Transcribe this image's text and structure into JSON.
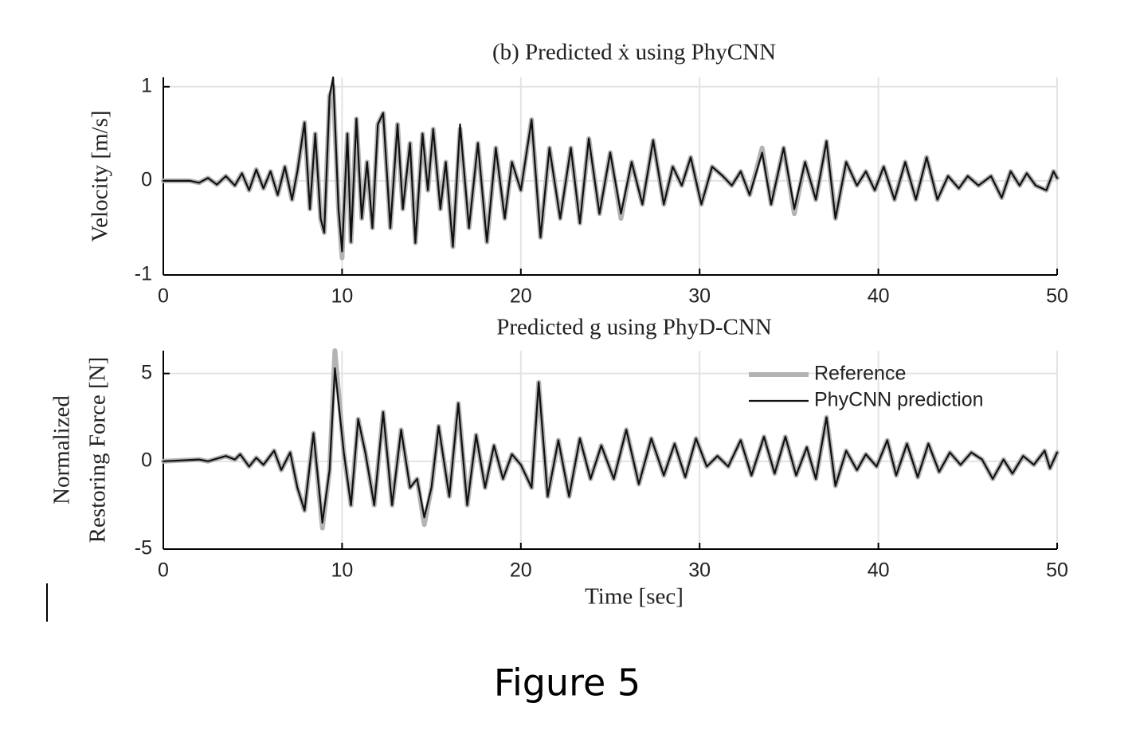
{
  "chart_data": [
    {
      "type": "line",
      "title": "(b) Predicted ẋ using PhyCNN",
      "ylabel": [
        "Velocity [m/s]"
      ],
      "xlim": [
        0,
        50
      ],
      "ylim": [
        -1,
        1.1
      ],
      "xticks": [
        0,
        10,
        20,
        30,
        40,
        50
      ],
      "yticks": [
        -1,
        0,
        1
      ],
      "grid": true,
      "x": [
        0,
        1.5,
        2,
        2.5,
        3,
        3.5,
        4,
        4.4,
        4.8,
        5.2,
        5.6,
        6,
        6.4,
        6.8,
        7.2,
        7.5,
        7.9,
        8.2,
        8.5,
        8.8,
        9,
        9.3,
        9.5,
        9.8,
        10,
        10.3,
        10.5,
        10.8,
        11.1,
        11.4,
        11.7,
        12,
        12.3,
        12.7,
        13.1,
        13.4,
        13.8,
        14.1,
        14.5,
        14.8,
        15.1,
        15.5,
        15.8,
        16.2,
        16.6,
        17.1,
        17.6,
        18.1,
        18.6,
        19.1,
        19.5,
        20,
        20.6,
        21.1,
        21.6,
        22.2,
        22.8,
        23.3,
        23.8,
        24.4,
        25,
        25.6,
        26.2,
        26.8,
        27.4,
        28,
        28.5,
        29,
        29.5,
        30.1,
        30.7,
        31.3,
        31.8,
        32.3,
        32.8,
        33.5,
        34,
        34.7,
        35.3,
        35.9,
        36.5,
        37.1,
        37.6,
        38.2,
        38.8,
        39.3,
        39.8,
        40.3,
        40.9,
        41.5,
        42.1,
        42.7,
        43.3,
        43.9,
        44.5,
        45,
        45.6,
        46.3,
        46.9,
        47.4,
        47.9,
        48.3,
        48.8,
        49.4,
        49.8,
        50
      ],
      "series": [
        {
          "color": "#b3b3b3",
          "width": 6,
          "values": [
            0,
            0,
            -0.02,
            0.03,
            -0.04,
            0.05,
            -0.05,
            0.08,
            -0.1,
            0.12,
            -0.08,
            0.1,
            -0.15,
            0.15,
            -0.2,
            0.1,
            0.62,
            -0.3,
            0.5,
            -0.4,
            -0.55,
            0.9,
            1.0,
            -0.3,
            -0.82,
            0.5,
            -0.65,
            0.66,
            -0.4,
            0.2,
            -0.5,
            0.6,
            0.72,
            -0.5,
            0.6,
            -0.3,
            0.4,
            -0.66,
            0.5,
            -0.1,
            0.55,
            -0.3,
            0.2,
            -0.7,
            0.55,
            -0.5,
            0.4,
            -0.65,
            0.35,
            -0.4,
            0.2,
            -0.1,
            0.65,
            -0.6,
            0.35,
            -0.4,
            0.35,
            -0.45,
            0.45,
            -0.35,
            0.3,
            -0.4,
            0.2,
            -0.25,
            0.43,
            -0.25,
            0.15,
            -0.05,
            0.25,
            -0.25,
            0.15,
            0.05,
            -0.05,
            0.1,
            -0.15,
            0.35,
            -0.25,
            0.35,
            -0.35,
            0.2,
            -0.2,
            0.42,
            -0.4,
            0.2,
            -0.05,
            0.1,
            -0.1,
            0.15,
            -0.2,
            0.2,
            -0.2,
            0.25,
            -0.2,
            0.05,
            -0.08,
            0.05,
            -0.05,
            0.05,
            -0.18,
            0.1,
            -0.05,
            0.08,
            -0.05,
            -0.1,
            0.1,
            0.03
          ]
        },
        {
          "color": "#111111",
          "width": 2.2,
          "values": [
            0,
            0,
            -0.02,
            0.03,
            -0.04,
            0.05,
            -0.05,
            0.08,
            -0.1,
            0.12,
            -0.08,
            0.1,
            -0.15,
            0.15,
            -0.2,
            0.1,
            0.62,
            -0.3,
            0.5,
            -0.4,
            -0.55,
            0.9,
            1.1,
            -0.3,
            -0.75,
            0.5,
            -0.65,
            0.66,
            -0.4,
            0.2,
            -0.5,
            0.6,
            0.72,
            -0.5,
            0.6,
            -0.3,
            0.4,
            -0.66,
            0.5,
            -0.1,
            0.55,
            -0.3,
            0.2,
            -0.7,
            0.6,
            -0.5,
            0.4,
            -0.65,
            0.35,
            -0.4,
            0.2,
            -0.1,
            0.65,
            -0.6,
            0.35,
            -0.4,
            0.35,
            -0.45,
            0.45,
            -0.35,
            0.3,
            -0.35,
            0.2,
            -0.25,
            0.43,
            -0.25,
            0.15,
            -0.05,
            0.25,
            -0.25,
            0.15,
            0.05,
            -0.05,
            0.1,
            -0.15,
            0.3,
            -0.25,
            0.35,
            -0.3,
            0.2,
            -0.2,
            0.42,
            -0.4,
            0.2,
            -0.05,
            0.1,
            -0.1,
            0.15,
            -0.2,
            0.2,
            -0.2,
            0.25,
            -0.2,
            0.05,
            -0.08,
            0.05,
            -0.05,
            0.05,
            -0.18,
            0.1,
            -0.05,
            0.08,
            -0.05,
            -0.1,
            0.1,
            0.03
          ]
        }
      ]
    },
    {
      "type": "line",
      "title": "Predicted g using PhyD-CNN",
      "ylabel": [
        "Normalized",
        "Restoring Force [N]"
      ],
      "xlabel": "Time [sec]",
      "xlim": [
        0,
        50
      ],
      "ylim": [
        -5,
        6.3
      ],
      "xticks": [
        0,
        10,
        20,
        30,
        40,
        50
      ],
      "yticks": [
        -5,
        0,
        5
      ],
      "grid": true,
      "legend": "upper right",
      "x": [
        0,
        2,
        2.5,
        3.5,
        4,
        4.3,
        4.8,
        5.2,
        5.6,
        6.2,
        6.6,
        7.1,
        7.5,
        7.9,
        8.4,
        8.9,
        9.3,
        9.6,
        10.1,
        10.5,
        10.9,
        11.3,
        11.8,
        12.3,
        12.8,
        13.3,
        13.8,
        14.2,
        14.6,
        15,
        15.4,
        16,
        16.5,
        17,
        17.5,
        18,
        18.5,
        19,
        19.5,
        20,
        20.6,
        21,
        21.5,
        22.1,
        22.7,
        23.3,
        23.9,
        24.5,
        25.2,
        25.9,
        26.6,
        27.3,
        28,
        28.6,
        29.2,
        29.8,
        30.4,
        31,
        31.6,
        32.3,
        32.9,
        33.6,
        34.2,
        34.8,
        35.4,
        36,
        36.5,
        37.1,
        37.6,
        38.2,
        38.8,
        39.3,
        39.9,
        40.5,
        41,
        41.6,
        42.2,
        42.8,
        43.4,
        44,
        44.6,
        45.2,
        45.8,
        46.4,
        47,
        47.5,
        48.1,
        48.7,
        49.3,
        49.6,
        50
      ],
      "series": [
        {
          "name": "Reference",
          "color": "#b3b3b3",
          "width": 6,
          "values": [
            0,
            0.1,
            0,
            0.3,
            0.1,
            0.4,
            -0.3,
            0.2,
            -0.2,
            0.6,
            -0.5,
            0.5,
            -1.5,
            -2.8,
            1.6,
            -3.8,
            -0.5,
            6.3,
            0.5,
            -2.5,
            2.4,
            0.5,
            -2.5,
            2.8,
            -2.5,
            1.8,
            -1.5,
            -1,
            -3.6,
            -1.5,
            2,
            -2,
            3.3,
            -2.5,
            1.5,
            -1.5,
            0.9,
            -1,
            0.4,
            -0.2,
            -1.5,
            4.5,
            -2,
            1.2,
            -2,
            1.3,
            -1,
            0.9,
            -1,
            1.8,
            -1.3,
            1.3,
            -0.8,
            1,
            -0.9,
            1.3,
            -0.3,
            0.3,
            -0.3,
            1.2,
            -0.8,
            1.4,
            -0.7,
            1.4,
            -0.8,
            0.8,
            -1,
            2.5,
            -1.4,
            0.6,
            -0.5,
            0.4,
            -0.3,
            1.2,
            -0.8,
            1,
            -0.9,
            1,
            -0.6,
            0.5,
            -0.2,
            0.5,
            0.1,
            -1,
            0.1,
            -0.7,
            0.3,
            -0.2,
            0.6,
            -0.4,
            0.5
          ]
        },
        {
          "name": "PhyCNN prediction",
          "color": "#111111",
          "width": 2.2,
          "values": [
            0,
            0.1,
            0,
            0.3,
            0.1,
            0.4,
            -0.3,
            0.2,
            -0.2,
            0.6,
            -0.5,
            0.5,
            -1.5,
            -2.8,
            1.6,
            -3.5,
            -0.5,
            5.3,
            0.5,
            -2.5,
            2.4,
            0.5,
            -2.5,
            2.8,
            -2.5,
            1.8,
            -1.5,
            -1,
            -3.2,
            -1.5,
            2,
            -2,
            3.3,
            -2.5,
            1.5,
            -1.5,
            0.9,
            -1,
            0.4,
            -0.2,
            -1.5,
            4.5,
            -2,
            1.2,
            -2,
            1.3,
            -1,
            0.9,
            -1,
            1.8,
            -1.3,
            1.3,
            -0.8,
            1,
            -0.9,
            1.3,
            -0.3,
            0.3,
            -0.3,
            1.2,
            -0.8,
            1.4,
            -0.7,
            1.4,
            -0.8,
            0.8,
            -1,
            2.5,
            -1.4,
            0.6,
            -0.5,
            0.4,
            -0.3,
            1.2,
            -0.8,
            1,
            -0.9,
            1,
            -0.6,
            0.5,
            -0.2,
            0.5,
            0.1,
            -1,
            0.1,
            -0.7,
            0.3,
            -0.2,
            0.6,
            -0.4,
            0.5
          ]
        }
      ]
    }
  ],
  "caption": "Figure 5"
}
